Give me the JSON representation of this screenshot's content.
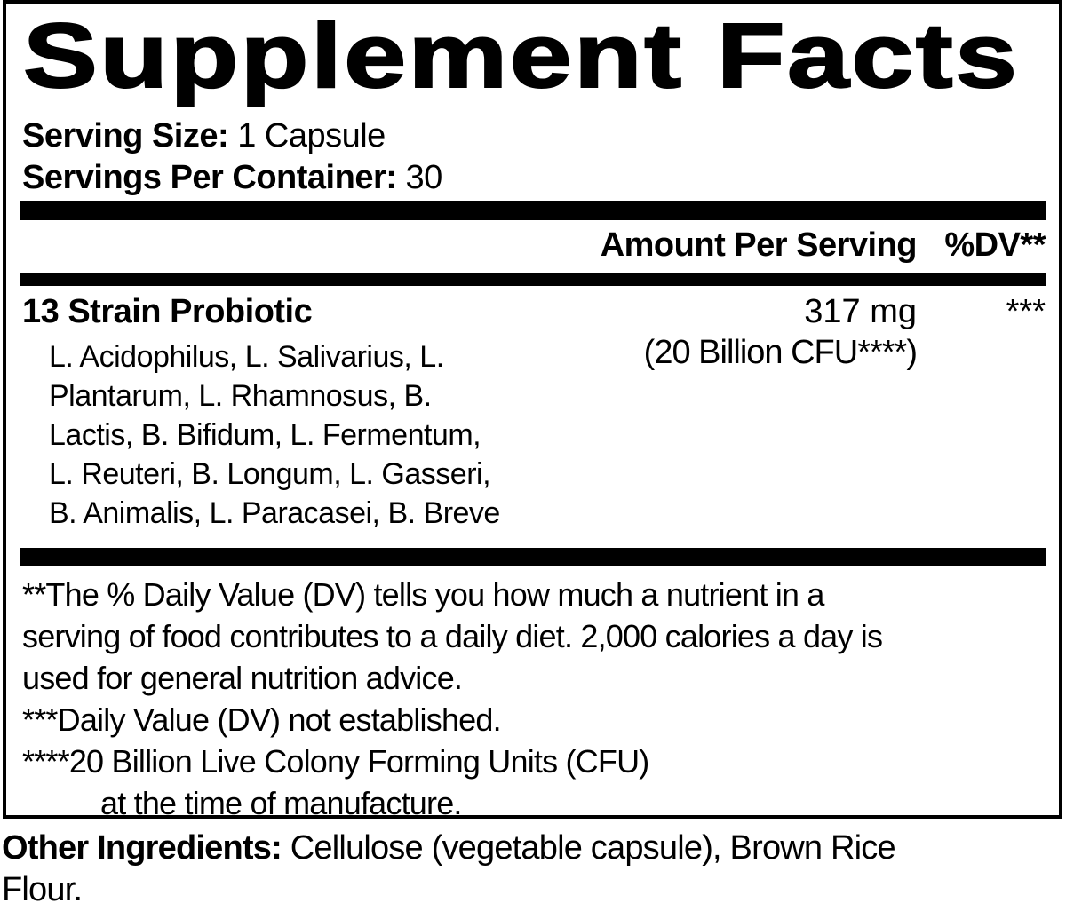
{
  "title": "Supplement Facts",
  "serving": {
    "size_label": "Serving Size:",
    "size_value": "1 Capsule",
    "per_container_label": "Servings Per Container:",
    "per_container_value": "30"
  },
  "columns": {
    "amount_header": "Amount Per Serving",
    "dv_header": "%DV**"
  },
  "ingredient_row": {
    "name": "13 Strain Probiotic",
    "amount": "317 mg",
    "amount_sub": "(20 Billion CFU****)",
    "dv": "***",
    "strains_lines": [
      "L. Acidophilus, L. Salivarius, L.",
      "Plantarum, L. Rhamnosus, B.",
      "Lactis, B. Bifidum, L. Fermentum,",
      "L. Reuteri, B. Longum, L. Gasseri,",
      "B. Animalis, L. Paracasei, B. Breve"
    ]
  },
  "footnotes": {
    "lines": [
      "**The % Daily Value (DV) tells you how much a nutrient in a",
      "serving of food contributes to a daily diet. 2,000 calories a day is",
      "used for general nutrition advice.",
      "***Daily Value (DV) not established.",
      "****20 Billion Live Colony Forming Units (CFU)",
      "at the time of manufacture."
    ]
  },
  "other_ingredients": {
    "label": "Other Ingredients:",
    "line1_rest": "Cellulose (vegetable capsule), Brown Rice",
    "line2": "Flour."
  },
  "colors": {
    "text": "#000000",
    "background": "#ffffff",
    "bar": "#000000"
  }
}
